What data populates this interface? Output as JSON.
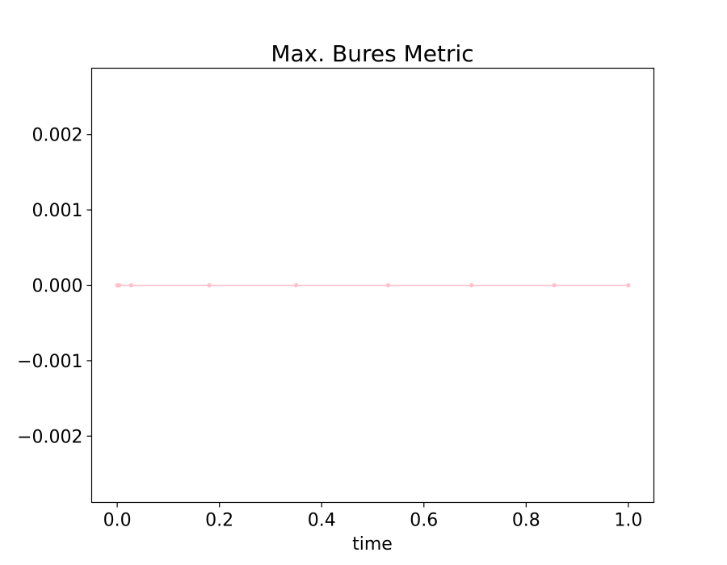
{
  "chart_data": {
    "type": "line",
    "title": "Max. Bures Metric",
    "xlabel": "time",
    "ylabel": "",
    "xlim": [
      -0.05,
      1.05
    ],
    "ylim": [
      -0.00288,
      0.00288
    ],
    "x_ticks": [
      0.0,
      0.2,
      0.4,
      0.6,
      0.8,
      1.0
    ],
    "x_tick_labels": [
      "0.0",
      "0.2",
      "0.4",
      "0.6",
      "0.8",
      "1.0"
    ],
    "y_ticks": [
      -0.002,
      -0.001,
      0.0,
      0.001,
      0.002
    ],
    "y_tick_labels": [
      "−0.002",
      "−0.001",
      "0.000",
      "0.001",
      "0.002"
    ],
    "grid": false,
    "series": [
      {
        "color": "#ffc0cb",
        "marker": "circle",
        "x": [
          0.0,
          0.002,
          0.004,
          0.027,
          0.18,
          0.35,
          0.53,
          0.693,
          0.855,
          1.0
        ],
        "y": [
          0.0,
          0.0,
          0.0,
          0.0,
          0.0,
          0.0,
          0.0,
          0.0,
          0.0,
          0.0
        ]
      }
    ]
  }
}
